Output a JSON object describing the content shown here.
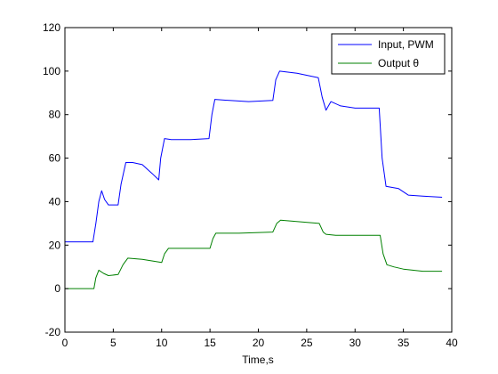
{
  "chart_data": {
    "type": "line",
    "title": "",
    "xlabel": "Time,s",
    "ylabel": "",
    "xlim": [
      0,
      40
    ],
    "ylim": [
      -20,
      120
    ],
    "x_ticks": [
      0,
      5,
      10,
      15,
      20,
      25,
      30,
      35,
      40
    ],
    "y_ticks": [
      -20,
      0,
      20,
      40,
      60,
      80,
      100,
      120
    ],
    "grid": false,
    "legend_position": "top-right",
    "series": [
      {
        "name": "Input, PWM",
        "color": "#0000ff",
        "points": [
          [
            0,
            21.5
          ],
          [
            2.9,
            21.5
          ],
          [
            3.2,
            30
          ],
          [
            3.5,
            40
          ],
          [
            3.8,
            45
          ],
          [
            4.1,
            41
          ],
          [
            4.5,
            38.5
          ],
          [
            5.5,
            38.5
          ],
          [
            5.8,
            48
          ],
          [
            6.3,
            58
          ],
          [
            7,
            58
          ],
          [
            8,
            57
          ],
          [
            9,
            53
          ],
          [
            9.7,
            50
          ],
          [
            9.9,
            60
          ],
          [
            10.3,
            69
          ],
          [
            11,
            68.5
          ],
          [
            13,
            68.5
          ],
          [
            14.9,
            69
          ],
          [
            15.2,
            80
          ],
          [
            15.5,
            87
          ],
          [
            17,
            86.5
          ],
          [
            19,
            86
          ],
          [
            21.5,
            86.5
          ],
          [
            21.8,
            96
          ],
          [
            22.2,
            100
          ],
          [
            24,
            99
          ],
          [
            26.2,
            97
          ],
          [
            26.6,
            88
          ],
          [
            27,
            82
          ],
          [
            27.5,
            86
          ],
          [
            28.5,
            84
          ],
          [
            30,
            83
          ],
          [
            32.5,
            83
          ],
          [
            32.8,
            60
          ],
          [
            33.2,
            47
          ],
          [
            34.5,
            46
          ],
          [
            35.5,
            43
          ],
          [
            37,
            42.5
          ],
          [
            39,
            42
          ]
        ]
      },
      {
        "name": "Output θ",
        "color": "#008000",
        "points": [
          [
            0,
            0
          ],
          [
            3,
            0
          ],
          [
            3.2,
            5
          ],
          [
            3.5,
            8.5
          ],
          [
            4,
            7
          ],
          [
            4.5,
            6
          ],
          [
            5.5,
            6.5
          ],
          [
            6,
            11
          ],
          [
            6.5,
            14
          ],
          [
            8,
            13.5
          ],
          [
            10,
            12
          ],
          [
            10.3,
            16
          ],
          [
            10.7,
            18.5
          ],
          [
            12,
            18.5
          ],
          [
            15,
            18.5
          ],
          [
            15.3,
            23
          ],
          [
            15.6,
            25.5
          ],
          [
            18,
            25.5
          ],
          [
            21.5,
            26
          ],
          [
            21.9,
            30
          ],
          [
            22.3,
            31.5
          ],
          [
            26.3,
            30
          ],
          [
            26.7,
            26
          ],
          [
            27,
            25
          ],
          [
            28,
            24.5
          ],
          [
            32.6,
            24.5
          ],
          [
            32.9,
            16
          ],
          [
            33.3,
            11
          ],
          [
            34,
            10
          ],
          [
            35,
            9
          ],
          [
            37,
            8
          ],
          [
            39,
            8
          ]
        ]
      }
    ]
  }
}
